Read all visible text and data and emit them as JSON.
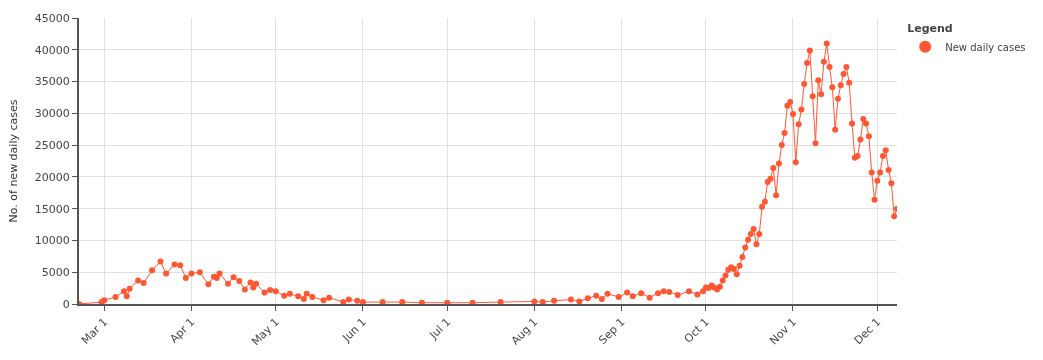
{
  "chart_data": {
    "type": "line",
    "ylabel": "No. of new daily cases",
    "legend_title": "Legend",
    "legend": "top right",
    "grid": true,
    "marker": "circle",
    "line_style": "solid",
    "xlim": [
      "--02-21",
      "--12-08"
    ],
    "xticks": [
      {
        "value": "--03-01",
        "label": "Mar 1"
      },
      {
        "value": "--04-01",
        "label": "Apr 1"
      },
      {
        "value": "--05-01",
        "label": "May 1"
      },
      {
        "value": "--06-01",
        "label": "Jun 1"
      },
      {
        "value": "--07-01",
        "label": "Jul 1"
      },
      {
        "value": "--08-01",
        "label": "Aug 1"
      },
      {
        "value": "--09-01",
        "label": "Sep 1"
      },
      {
        "value": "--10-01",
        "label": "Oct 1"
      },
      {
        "value": "--11-01",
        "label": "Nov 1"
      },
      {
        "value": "--12-01",
        "label": "Dec 1"
      }
    ],
    "ylim": [
      0,
      45000
    ],
    "yticks": [
      0,
      5000,
      10000,
      15000,
      20000,
      25000,
      30000,
      35000,
      40000,
      45000
    ],
    "x": [
      "--02-21",
      "--02-29",
      "--03-01",
      "--03-05",
      "--03-08",
      "--03-09",
      "--03-10",
      "--03-13",
      "--03-15",
      "--03-18",
      "--03-21",
      "--03-23",
      "--03-26",
      "--03-28",
      "--03-30",
      "--04-01",
      "--04-04",
      "--04-07",
      "--04-09",
      "--04-10",
      "--04-11",
      "--04-14",
      "--04-16",
      "--04-18",
      "--04-20",
      "--04-22",
      "--04-23",
      "--04-24",
      "--04-27",
      "--04-29",
      "--05-01",
      "--05-04",
      "--05-06",
      "--05-09",
      "--05-11",
      "--05-12",
      "--05-14",
      "--05-18",
      "--05-20",
      "--05-25",
      "--05-27",
      "--05-30",
      "--06-01",
      "--06-08",
      "--06-15",
      "--06-22",
      "--07-01",
      "--07-10",
      "--07-20",
      "--08-01",
      "--08-04",
      "--08-08",
      "--08-14",
      "--08-17",
      "--08-20",
      "--08-23",
      "--08-25",
      "--08-27",
      "--08-31",
      "--09-03",
      "--09-05",
      "--09-08",
      "--09-11",
      "--09-14",
      "--09-16",
      "--09-18",
      "--09-21",
      "--09-25",
      "--09-28",
      "--09-30",
      "--10-01",
      "--10-02",
      "--10-03",
      "--10-04",
      "--10-05",
      "--10-06",
      "--10-07",
      "--10-08",
      "--10-09",
      "--10-10",
      "--10-11",
      "--10-12",
      "--10-13",
      "--10-14",
      "--10-15",
      "--10-16",
      "--10-17",
      "--10-18",
      "--10-19",
      "--10-20",
      "--10-21",
      "--10-22",
      "--10-23",
      "--10-24",
      "--10-25",
      "--10-26",
      "--10-27",
      "--10-28",
      "--10-29",
      "--10-30",
      "--10-31",
      "--11-01",
      "--11-02",
      "--11-03",
      "--11-04",
      "--11-05",
      "--11-06",
      "--11-07",
      "--11-08",
      "--11-09",
      "--11-10",
      "--11-11",
      "--11-12",
      "--11-13",
      "--11-14",
      "--11-15",
      "--11-16",
      "--11-17",
      "--11-18",
      "--11-19",
      "--11-20",
      "--11-21",
      "--11-22",
      "--11-23",
      "--11-24",
      "--11-25",
      "--11-26",
      "--11-27",
      "--11-28",
      "--11-29",
      "--11-30",
      "--12-01",
      "--12-02",
      "--12-03",
      "--12-04",
      "--12-05",
      "--12-06",
      "--12-07",
      "--12-08"
    ],
    "series": [
      {
        "name": "New daily cases",
        "color": "#ff5733",
        "values": [
          0,
          300,
          600,
          1100,
          2000,
          1200,
          2400,
          3700,
          3300,
          5300,
          6700,
          4800,
          6200,
          6100,
          4100,
          4800,
          5000,
          3100,
          4300,
          4100,
          4800,
          3200,
          4200,
          3600,
          2300,
          3400,
          2600,
          3200,
          1800,
          2200,
          2000,
          1300,
          1600,
          1200,
          800,
          1600,
          1100,
          600,
          1000,
          300,
          700,
          500,
          300,
          300,
          300,
          200,
          200,
          200,
          300,
          400,
          300,
          500,
          700,
          400,
          900,
          1300,
          800,
          1600,
          1100,
          1800,
          1200,
          1700,
          1000,
          1700,
          2000,
          1900,
          1400,
          2000,
          1500,
          2000,
          2600,
          2500,
          2900,
          2600,
          2300,
          2700,
          3700,
          4500,
          5400,
          5800,
          5500,
          4700,
          6000,
          7400,
          8900,
          10100,
          11000,
          11800,
          9400,
          11000,
          15300,
          16100,
          19200,
          19700,
          21400,
          17100,
          22100,
          25000,
          26900,
          31200,
          31800,
          29900,
          22300,
          28300,
          30600,
          34600,
          37900,
          39900,
          32700,
          25300,
          35200,
          33000,
          38100,
          41000,
          37300,
          34100,
          27400,
          32300,
          34400,
          36200,
          37300,
          34800,
          28400,
          23000,
          23300,
          25900,
          29100,
          28400,
          26400,
          20700,
          16400,
          19400,
          20700,
          23300,
          24200,
          21100,
          19000,
          13800,
          15000
        ]
      }
    ]
  }
}
